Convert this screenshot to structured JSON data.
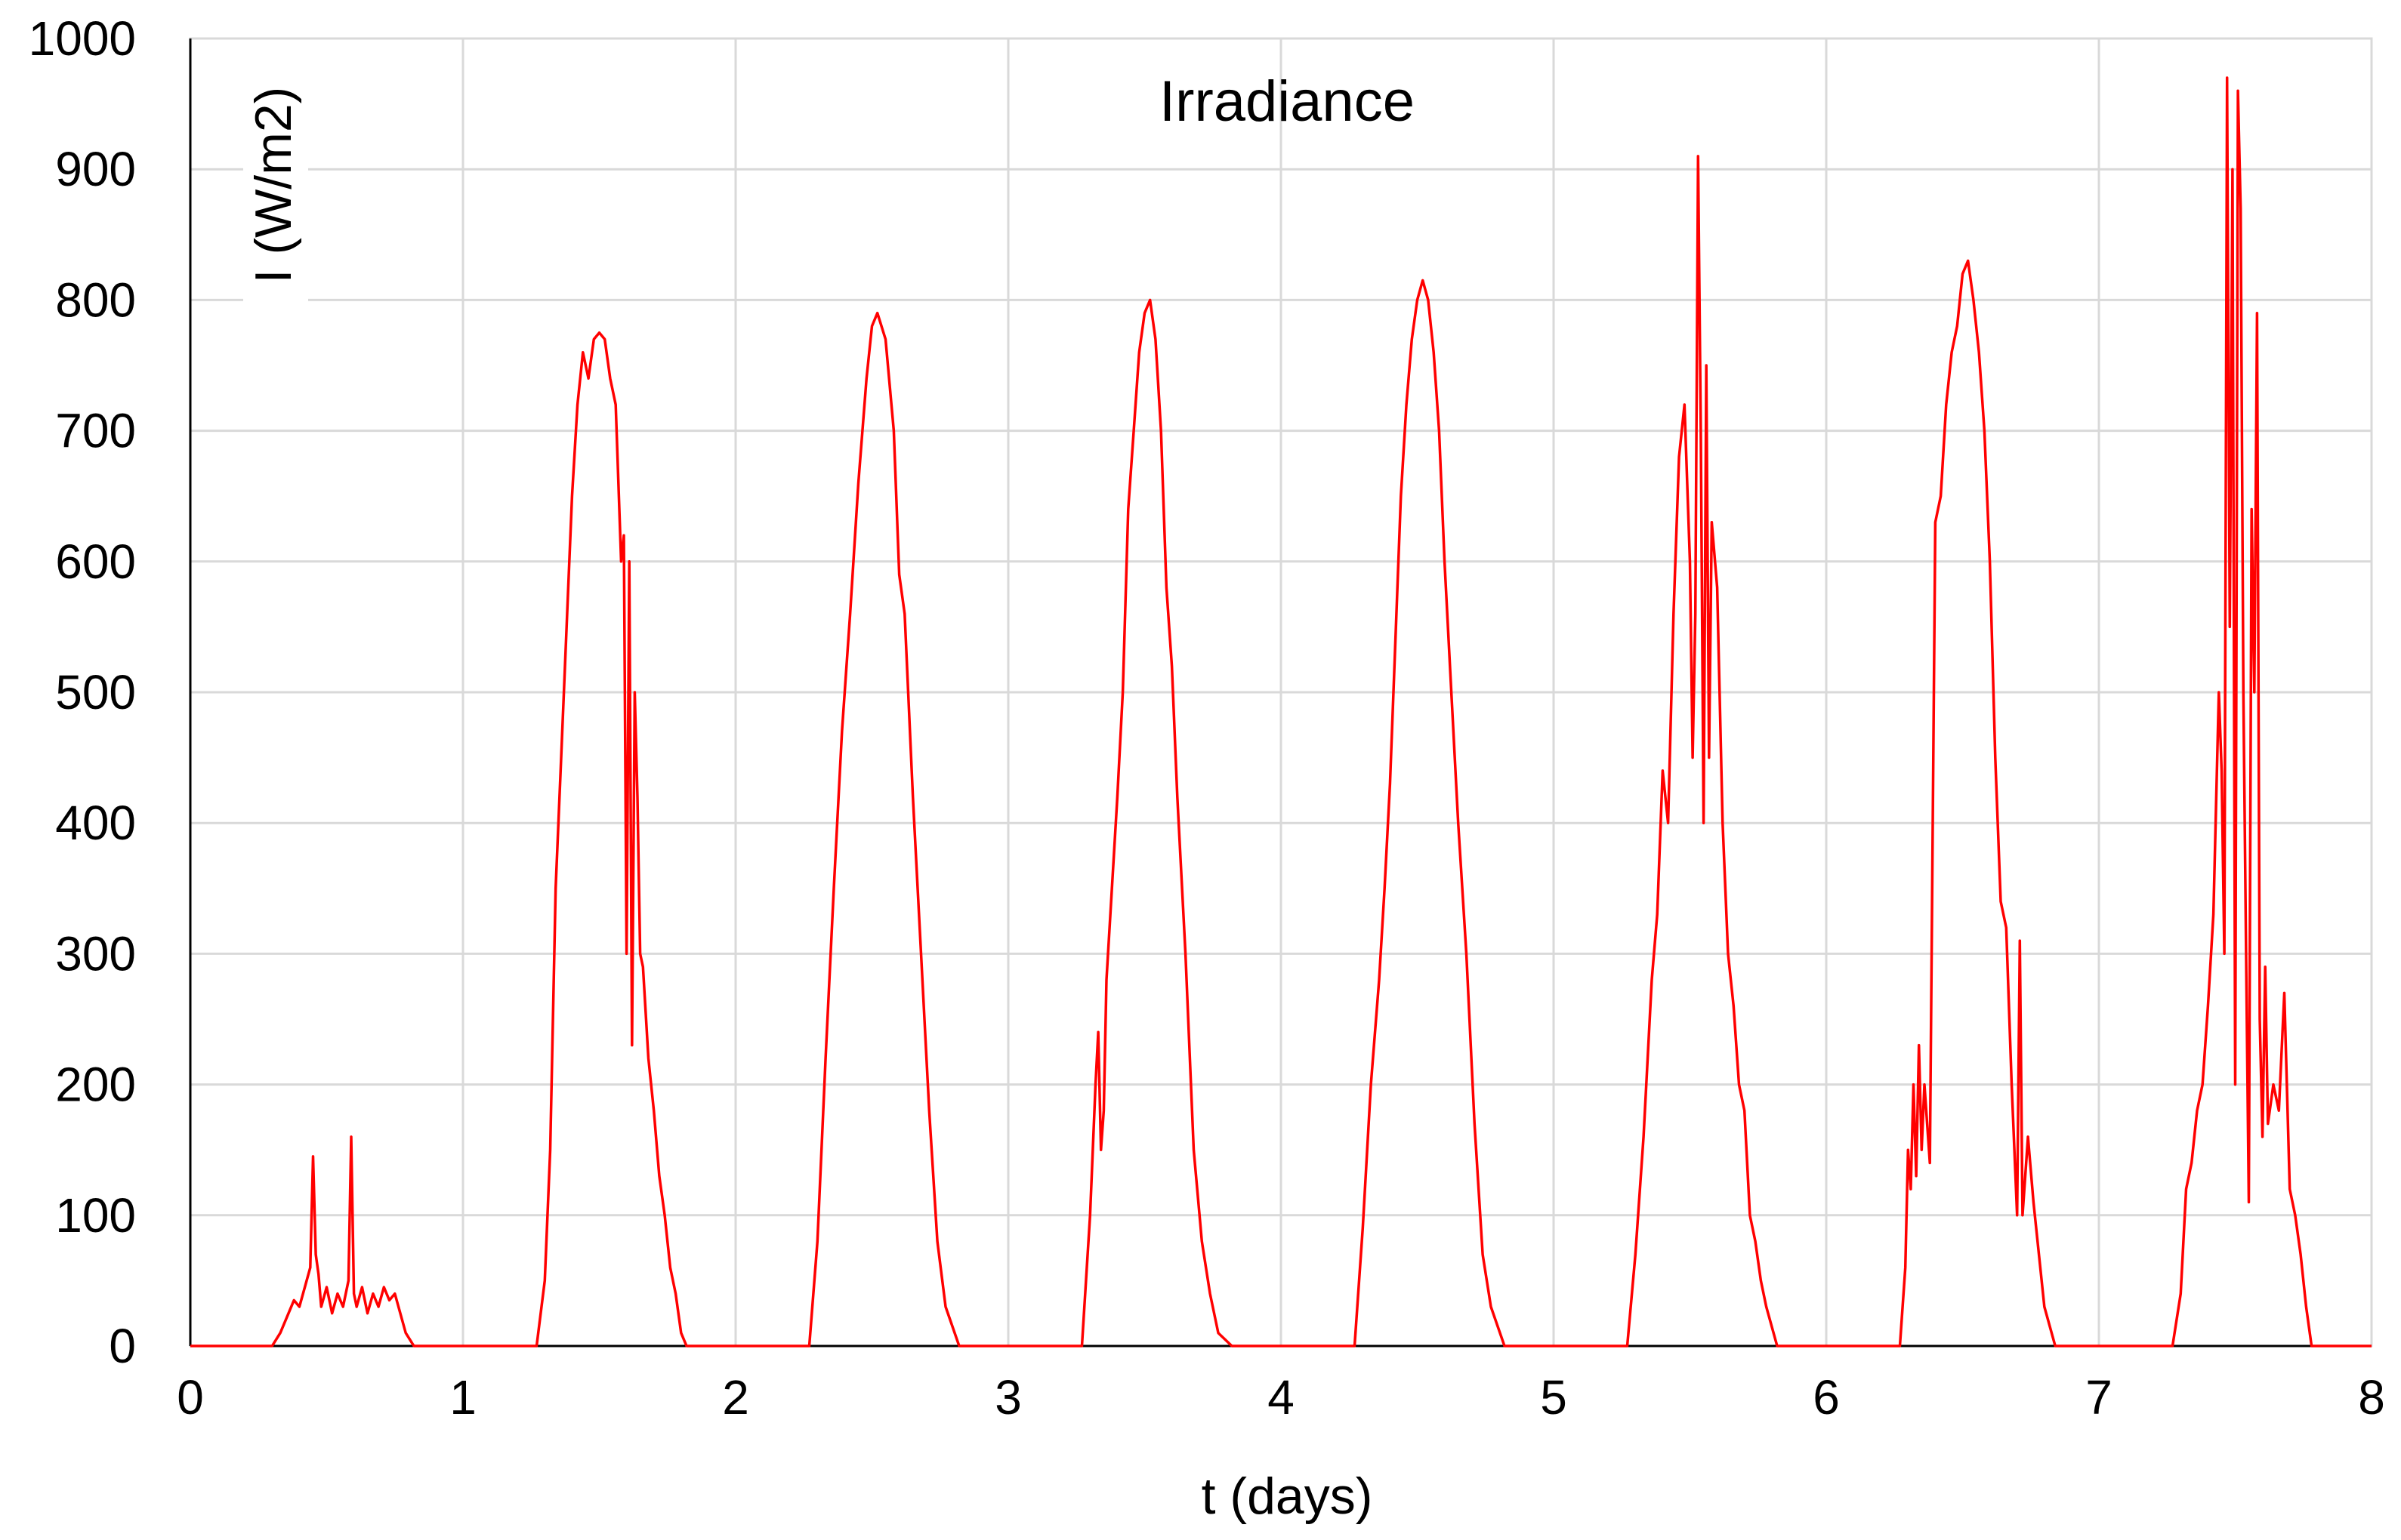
{
  "chart_data": {
    "type": "line",
    "title": "Irradiance",
    "xlabel": "t (days)",
    "ylabel": "I (W/m2)",
    "xlim": [
      0,
      8
    ],
    "ylim": [
      0,
      1000
    ],
    "xticks": [
      0,
      1,
      2,
      3,
      4,
      5,
      6,
      7,
      8
    ],
    "yticks": [
      0,
      100,
      200,
      300,
      400,
      500,
      600,
      700,
      800,
      900,
      1000
    ],
    "xtick_labels": [
      "0",
      "1",
      "2",
      "3",
      "4",
      "5",
      "6",
      "7",
      "8"
    ],
    "ytick_labels": [
      "0",
      "100",
      "200",
      "300",
      "400",
      "500",
      "600",
      "700",
      "800",
      "900",
      "1000"
    ],
    "grid": true,
    "legend": "none",
    "colors": {
      "series": "#ff0000",
      "grid": "#d9d9d9",
      "axis": "#000000"
    },
    "series": [
      {
        "x": [
          0,
          0.3,
          0.33,
          0.36,
          0.38,
          0.4,
          0.42,
          0.44,
          0.45,
          0.46,
          0.47,
          0.48,
          0.5,
          0.52,
          0.54,
          0.56,
          0.58,
          0.59,
          0.6,
          0.61,
          0.63,
          0.65,
          0.67,
          0.69,
          0.71,
          0.73,
          0.75,
          0.77,
          0.79,
          0.82,
          1.27,
          1.3,
          1.32,
          1.34,
          1.36,
          1.38,
          1.4,
          1.42,
          1.44,
          1.46,
          1.48,
          1.5,
          1.52,
          1.54,
          1.56,
          1.58,
          1.59,
          1.6,
          1.61,
          1.62,
          1.63,
          1.64,
          1.65,
          1.66,
          1.68,
          1.7,
          1.72,
          1.74,
          1.76,
          1.78,
          1.8,
          1.82,
          2.27,
          2.3,
          2.33,
          2.36,
          2.39,
          2.42,
          2.45,
          2.48,
          2.5,
          2.52,
          2.55,
          2.58,
          2.6,
          2.62,
          2.65,
          2.68,
          2.71,
          2.74,
          2.77,
          2.82,
          3.27,
          3.3,
          3.32,
          3.33,
          3.34,
          3.35,
          3.36,
          3.38,
          3.4,
          3.42,
          3.44,
          3.46,
          3.48,
          3.5,
          3.52,
          3.54,
          3.56,
          3.58,
          3.6,
          3.62,
          3.65,
          3.68,
          3.71,
          3.74,
          3.77,
          3.82,
          4.27,
          4.3,
          4.33,
          4.36,
          4.38,
          4.4,
          4.42,
          4.44,
          4.46,
          4.48,
          4.5,
          4.52,
          4.54,
          4.56,
          4.58,
          4.6,
          4.62,
          4.65,
          4.68,
          4.71,
          4.74,
          4.77,
          4.82,
          5.27,
          5.3,
          5.33,
          5.36,
          5.38,
          5.4,
          5.42,
          5.44,
          5.46,
          5.48,
          5.5,
          5.51,
          5.52,
          5.53,
          5.54,
          5.55,
          5.56,
          5.57,
          5.58,
          5.6,
          5.62,
          5.64,
          5.66,
          5.68,
          5.7,
          5.72,
          5.74,
          5.76,
          5.78,
          5.82,
          6.27,
          6.29,
          6.3,
          6.31,
          6.32,
          6.33,
          6.34,
          6.35,
          6.36,
          6.38,
          6.4,
          6.42,
          6.44,
          6.46,
          6.48,
          6.5,
          6.52,
          6.54,
          6.56,
          6.58,
          6.6,
          6.62,
          6.64,
          6.66,
          6.68,
          6.7,
          6.71,
          6.72,
          6.74,
          6.76,
          6.78,
          6.8,
          6.84,
          7.27,
          7.3,
          7.32,
          7.34,
          7.36,
          7.38,
          7.4,
          7.42,
          7.44,
          7.45,
          7.46,
          7.47,
          7.48,
          7.49,
          7.5,
          7.51,
          7.52,
          7.53,
          7.54,
          7.55,
          7.56,
          7.57,
          7.58,
          7.59,
          7.6,
          7.61,
          7.62,
          7.64,
          7.66,
          7.68,
          7.7,
          7.72,
          7.74,
          7.76,
          7.78,
          7.8,
          7.82,
          7.84,
          8
        ],
        "y": [
          0,
          0,
          10,
          25,
          35,
          30,
          45,
          60,
          145,
          70,
          55,
          30,
          45,
          25,
          40,
          30,
          50,
          160,
          40,
          30,
          45,
          25,
          40,
          30,
          45,
          35,
          40,
          25,
          10,
          0,
          0,
          50,
          150,
          350,
          450,
          550,
          650,
          720,
          760,
          740,
          770,
          775,
          770,
          740,
          720,
          600,
          620,
          300,
          600,
          230,
          500,
          420,
          300,
          290,
          220,
          180,
          130,
          100,
          60,
          40,
          10,
          0,
          0,
          80,
          220,
          350,
          470,
          560,
          660,
          740,
          780,
          790,
          770,
          700,
          590,
          560,
          420,
          300,
          180,
          80,
          30,
          0,
          0,
          100,
          200,
          240,
          150,
          180,
          280,
          350,
          420,
          500,
          640,
          700,
          760,
          790,
          800,
          770,
          700,
          580,
          520,
          420,
          300,
          150,
          80,
          40,
          10,
          0,
          0,
          90,
          200,
          280,
          350,
          430,
          540,
          650,
          720,
          770,
          800,
          815,
          800,
          760,
          700,
          600,
          520,
          400,
          300,
          170,
          70,
          30,
          0,
          0,
          70,
          160,
          280,
          330,
          440,
          400,
          560,
          680,
          720,
          600,
          450,
          560,
          910,
          700,
          400,
          750,
          450,
          630,
          580,
          400,
          300,
          260,
          200,
          180,
          100,
          80,
          50,
          30,
          0,
          0,
          60,
          150,
          120,
          200,
          130,
          230,
          150,
          200,
          140,
          630,
          650,
          720,
          760,
          780,
          820,
          830,
          800,
          760,
          700,
          600,
          450,
          340,
          320,
          200,
          100,
          310,
          100,
          160,
          110,
          70,
          30,
          0,
          0,
          40,
          120,
          140,
          180,
          200,
          260,
          330,
          500,
          440,
          300,
          970,
          550,
          900,
          200,
          960,
          870,
          500,
          300,
          110,
          640,
          500,
          790,
          250,
          160,
          290,
          170,
          200,
          180,
          270,
          120,
          100,
          70,
          30,
          0,
          0,
          0,
          0,
          0
        ]
      }
    ]
  }
}
